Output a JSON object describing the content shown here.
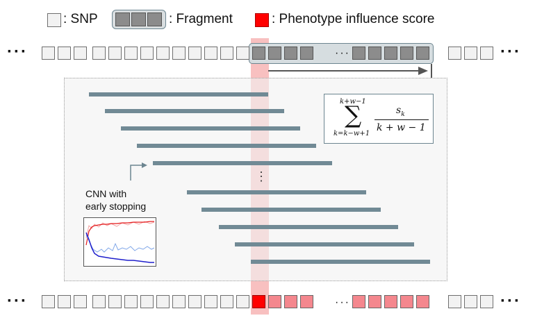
{
  "legend": {
    "snp_label": ": SNP",
    "fragment_label": ": Fragment",
    "score_label": ": Phenotype influence score"
  },
  "ellipsis": "···",
  "middle_ellipsis": "···",
  "vertical_ellipsis": "⋮",
  "cnn_label_line1": "CNN with",
  "cnn_label_line2": "early stopping",
  "formula": {
    "sum_upper": "k+w−1",
    "sum_lower": "k=k−w+1",
    "numerator": "s",
    "numerator_sub": "k",
    "denominator": "k + w − 1"
  },
  "colors": {
    "snp_fill": "#f2f2f2",
    "fragment_fill": "#8c8c8c",
    "score_red": "#ff0000",
    "score_pink": "#f4878e",
    "highlight_column": "#f7b5b5",
    "bar": "#718a95"
  }
}
